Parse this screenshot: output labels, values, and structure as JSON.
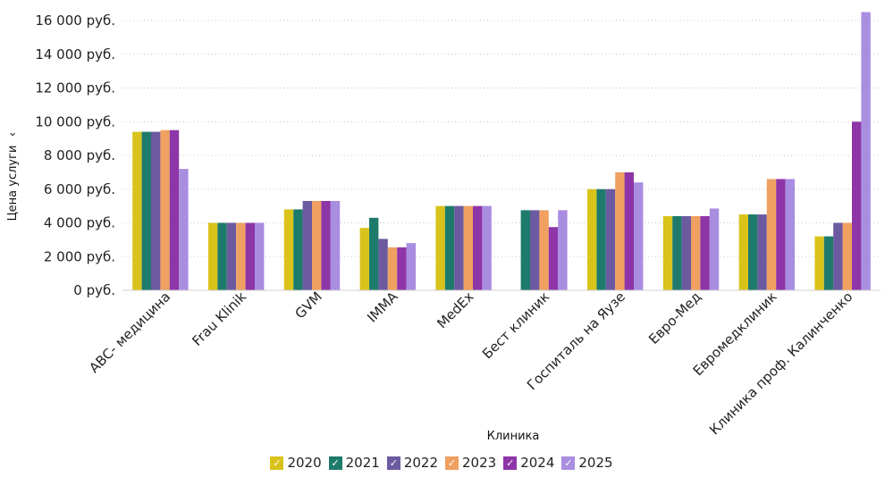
{
  "chart_data": {
    "type": "bar",
    "xlabel": "Клиника",
    "ylabel": "Цена услуги",
    "ylabel_icon": "chevron-down-icon",
    "ylim": [
      0,
      16000
    ],
    "y_ticks": [
      {
        "value": 0,
        "label": "0 руб."
      },
      {
        "value": 2000,
        "label": "2 000 руб."
      },
      {
        "value": 4000,
        "label": "4 000 руб."
      },
      {
        "value": 6000,
        "label": "6 000 руб."
      },
      {
        "value": 8000,
        "label": "8 000 руб."
      },
      {
        "value": 10000,
        "label": "10 000 руб."
      },
      {
        "value": 12000,
        "label": "12 000 руб."
      },
      {
        "value": 14000,
        "label": "14 000 руб."
      },
      {
        "value": 16000,
        "label": "16 000 руб."
      }
    ],
    "gridlines": true,
    "legend_position": "bottom",
    "categories": [
      "ABC- медицина",
      "Frau Klinik",
      "GVM",
      "IMMA",
      "MedEx",
      "Бест клиник",
      "Госпиталь на Яузе",
      "Евро-Мед",
      "Евромедклиник",
      "Клиника проф. Калинченко"
    ],
    "series": [
      {
        "name": "2020",
        "color": "#d9c31a",
        "values": [
          9400,
          4000,
          4800,
          3700,
          5000,
          null,
          6000,
          4400,
          4500,
          3200
        ]
      },
      {
        "name": "2021",
        "color": "#1e7b6b",
        "values": [
          9400,
          4000,
          4800,
          4300,
          5000,
          4750,
          6000,
          4400,
          4500,
          3200
        ]
      },
      {
        "name": "2022",
        "color": "#6b5aa0",
        "values": [
          9400,
          4000,
          5300,
          3050,
          5000,
          4750,
          6000,
          4400,
          4500,
          4000
        ]
      },
      {
        "name": "2023",
        "color": "#f0a060",
        "values": [
          9500,
          4000,
          5300,
          2550,
          5000,
          4750,
          7000,
          4400,
          6600,
          4000
        ]
      },
      {
        "name": "2024",
        "color": "#8e35a8",
        "values": [
          9500,
          4000,
          5300,
          2550,
          5000,
          3750,
          7000,
          4400,
          6600,
          10000
        ]
      },
      {
        "name": "2025",
        "color": "#a98de0",
        "values": [
          7200,
          4000,
          5300,
          2800,
          5000,
          4750,
          6400,
          4850,
          6600,
          16500
        ]
      }
    ]
  }
}
